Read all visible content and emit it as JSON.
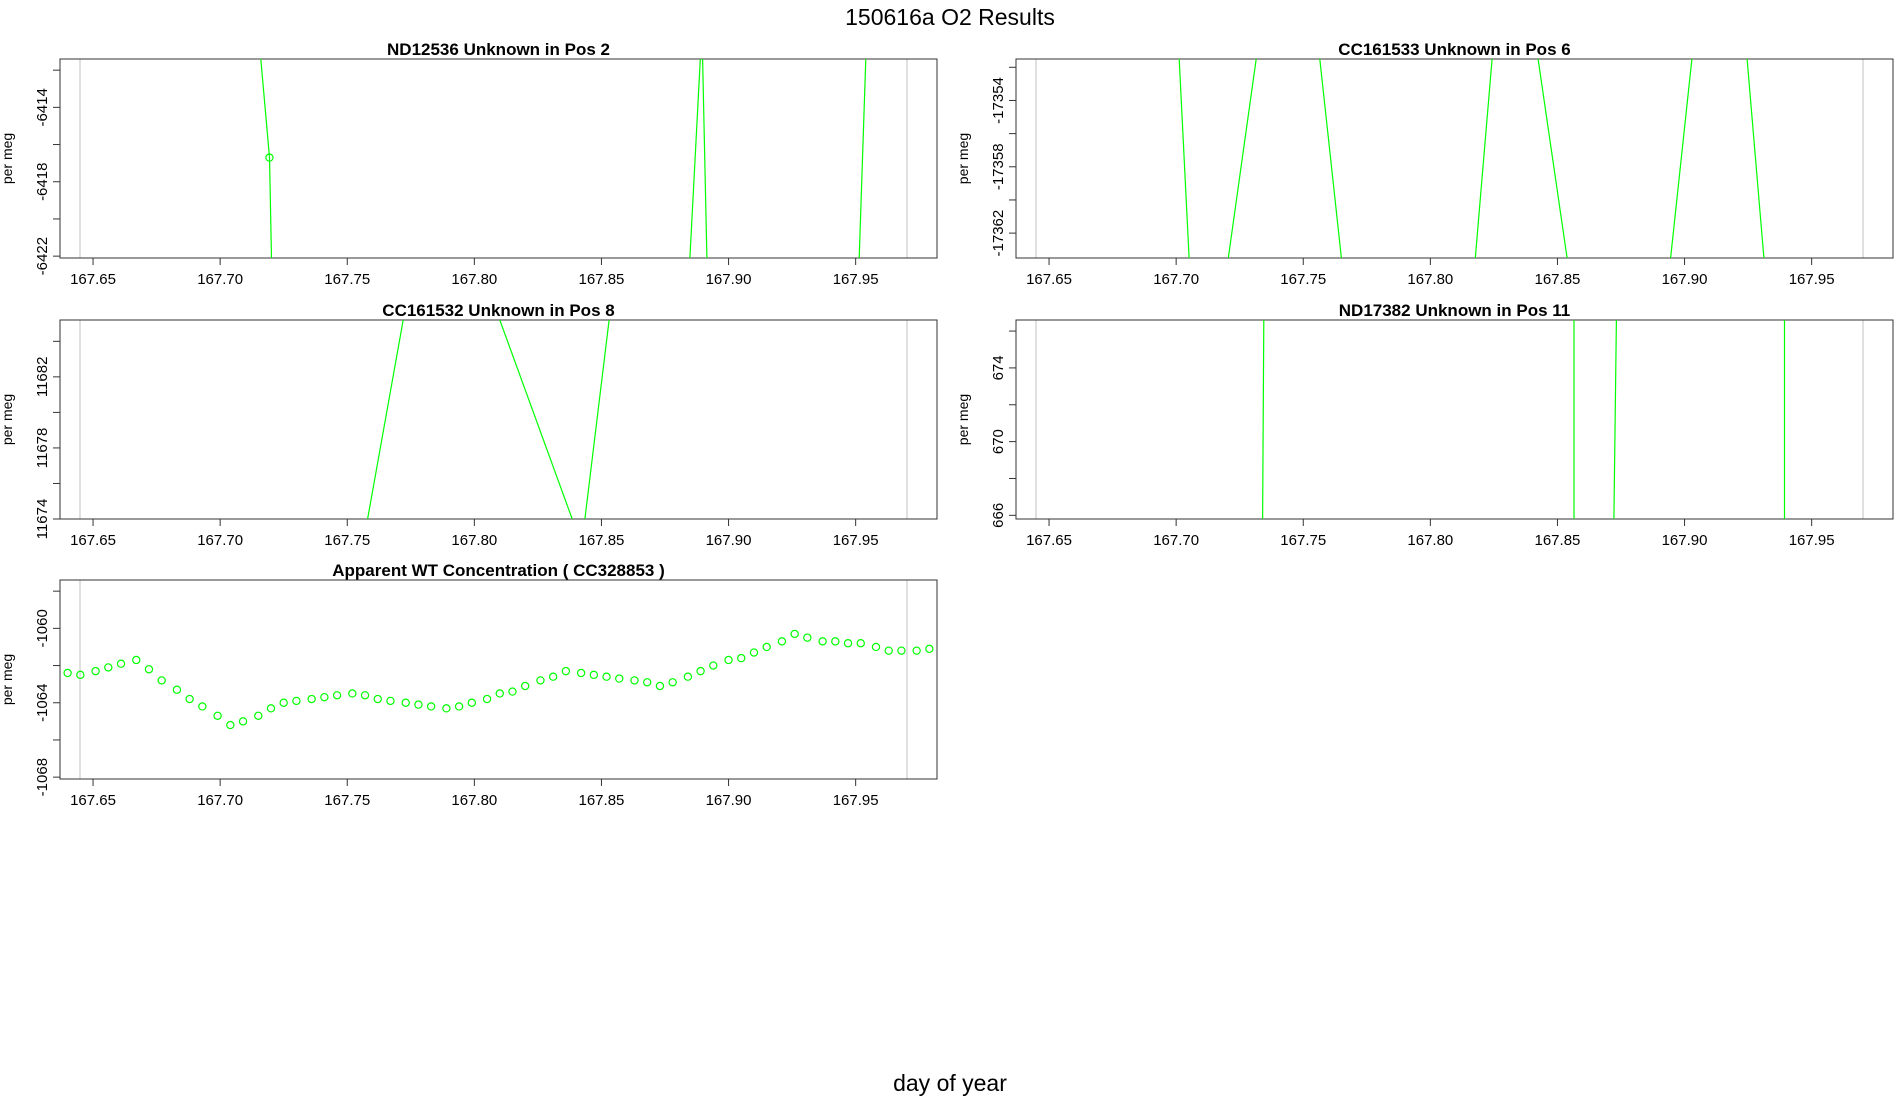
{
  "figure": {
    "title": "150616a  O2 Results",
    "xlabel": "day of year",
    "colors": {
      "data": "#00ff00",
      "frame": "#333333",
      "guide": "#c0c0c0"
    }
  },
  "chart_data": [
    {
      "type": "line",
      "title": "ND12536    Unknown in Pos 2",
      "ylabel": "per meg",
      "xlim": [
        167.637,
        167.982
      ],
      "ylim": [
        -6422.1,
        -6411.4
      ],
      "xticks": [
        167.65,
        167.7,
        167.75,
        167.8,
        167.85,
        167.9,
        167.95
      ],
      "xtick_labels": [
        "167.65",
        "167.70",
        "167.75",
        "167.80",
        "167.85",
        "167.90",
        "167.95"
      ],
      "yticks": [
        -6414,
        -6418,
        -6422
      ],
      "ytick_labels": [
        "-6414",
        "-6418",
        "-6422"
      ],
      "series": [
        {
          "points": [
            [
              167.716,
              -6411.4
            ],
            [
              167.7194,
              -6416.7
            ],
            [
              167.7202,
              -6422.1
            ]
          ]
        },
        {
          "points": [
            [
              167.8848,
              -6422.1
            ],
            [
              167.8889,
              -6411.4
            ]
          ]
        },
        {
          "points": [
            [
              167.8898,
              -6411.4
            ],
            [
              167.8915,
              -6422.1
            ]
          ]
        },
        {
          "points": [
            [
              167.9514,
              -6422.1
            ],
            [
              167.954,
              -6411.4
            ]
          ]
        }
      ],
      "markers": [
        [
          167.7194,
          -6416.7
        ]
      ]
    },
    {
      "type": "line",
      "title": "CC161533    Unknown in Pos 6",
      "ylabel": "per meg",
      "xlim": [
        167.637,
        167.982
      ],
      "ylim": [
        -17363.5,
        -17351.5
      ],
      "xticks": [
        167.65,
        167.7,
        167.75,
        167.8,
        167.85,
        167.9,
        167.95
      ],
      "xtick_labels": [
        "167.65",
        "167.70",
        "167.75",
        "167.80",
        "167.85",
        "167.90",
        "167.95"
      ],
      "yticks": [
        -17354,
        -17358,
        -17362
      ],
      "ytick_labels": [
        "-17354",
        "-17358",
        "-17362"
      ],
      "series": [
        {
          "points": [
            [
              167.7012,
              -17351.5
            ],
            [
              167.7051,
              -17363.5
            ]
          ]
        },
        {
          "points": [
            [
              167.7205,
              -17363.5
            ],
            [
              167.7315,
              -17351.5
            ]
          ]
        },
        {
          "points": [
            [
              167.7565,
              -17351.5
            ],
            [
              167.765,
              -17363.5
            ]
          ]
        },
        {
          "points": [
            [
              167.8177,
              -17363.5
            ],
            [
              167.8243,
              -17351.5
            ]
          ]
        },
        {
          "points": [
            [
              167.8424,
              -17351.5
            ],
            [
              167.8538,
              -17363.5
            ]
          ]
        },
        {
          "points": [
            [
              167.8945,
              -17363.5
            ],
            [
              167.9029,
              -17351.5
            ]
          ]
        },
        {
          "points": [
            [
              167.9246,
              -17351.5
            ],
            [
              167.9312,
              -17363.5
            ]
          ]
        }
      ],
      "markers": []
    },
    {
      "type": "line",
      "title": "CC161532    Unknown in Pos 8",
      "ylabel": "per meg",
      "xlim": [
        167.637,
        167.982
      ],
      "ylim": [
        11674.0,
        11685.2
      ],
      "xticks": [
        167.65,
        167.7,
        167.75,
        167.8,
        167.85,
        167.9,
        167.95
      ],
      "xtick_labels": [
        "167.65",
        "167.70",
        "167.75",
        "167.80",
        "167.85",
        "167.90",
        "167.95"
      ],
      "yticks": [
        11674,
        11678,
        11682
      ],
      "ytick_labels": [
        "11674",
        "11678",
        "11682"
      ],
      "series": [
        {
          "points": [
            [
              167.758,
              11674.0
            ],
            [
              167.772,
              11685.2
            ]
          ]
        },
        {
          "points": [
            [
              167.81,
              11685.2
            ],
            [
              167.8385,
              11674.0
            ]
          ]
        },
        {
          "points": [
            [
              167.8435,
              11674.0
            ],
            [
              167.853,
              11685.2
            ]
          ]
        }
      ],
      "markers": []
    },
    {
      "type": "line",
      "title": "ND17382    Unknown in Pos 11",
      "ylabel": "per meg",
      "xlim": [
        167.637,
        167.982
      ],
      "ylim": [
        665.8,
        676.6
      ],
      "xticks": [
        167.65,
        167.7,
        167.75,
        167.8,
        167.85,
        167.9,
        167.95
      ],
      "xtick_labels": [
        "167.65",
        "167.70",
        "167.75",
        "167.80",
        "167.85",
        "167.90",
        "167.95"
      ],
      "yticks": [
        666,
        670,
        674
      ],
      "ytick_labels": [
        "666",
        "670",
        "674"
      ],
      "series": [
        {
          "points": [
            [
              167.734,
              665.8
            ],
            [
              167.7345,
              676.6
            ]
          ]
        },
        {
          "points": [
            [
              167.8565,
              665.8
            ],
            [
              167.8565,
              676.6
            ]
          ]
        },
        {
          "points": [
            [
              167.8722,
              665.8
            ],
            [
              167.8732,
              676.6
            ]
          ]
        },
        {
          "points": [
            [
              167.9393,
              665.8
            ],
            [
              167.9393,
              676.6
            ]
          ]
        }
      ],
      "markers": []
    },
    {
      "type": "scatter",
      "title": "Apparent WT Concentration ( CC328853 )",
      "ylabel": "per meg",
      "xlim": [
        167.637,
        167.982
      ],
      "ylim": [
        -1068.1,
        -1057.4
      ],
      "xticks": [
        167.65,
        167.7,
        167.75,
        167.8,
        167.85,
        167.9,
        167.95
      ],
      "xtick_labels": [
        "167.65",
        "167.70",
        "167.75",
        "167.80",
        "167.85",
        "167.90",
        "167.95"
      ],
      "yticks": [
        -1060,
        -1064,
        -1068
      ],
      "ytick_labels": [
        "-1060",
        "-1064",
        "-1068"
      ],
      "series": [],
      "markers": [
        [
          167.64,
          -1062.4
        ],
        [
          167.645,
          -1062.5
        ],
        [
          167.651,
          -1062.3
        ],
        [
          167.656,
          -1062.1
        ],
        [
          167.661,
          -1061.9
        ],
        [
          167.667,
          -1061.7
        ],
        [
          167.672,
          -1062.2
        ],
        [
          167.677,
          -1062.8
        ],
        [
          167.683,
          -1063.3
        ],
        [
          167.688,
          -1063.8
        ],
        [
          167.693,
          -1064.2
        ],
        [
          167.699,
          -1064.7
        ],
        [
          167.704,
          -1065.2
        ],
        [
          167.709,
          -1065.0
        ],
        [
          167.715,
          -1064.7
        ],
        [
          167.72,
          -1064.3
        ],
        [
          167.725,
          -1064.0
        ],
        [
          167.73,
          -1063.9
        ],
        [
          167.736,
          -1063.8
        ],
        [
          167.741,
          -1063.7
        ],
        [
          167.746,
          -1063.6
        ],
        [
          167.752,
          -1063.5
        ],
        [
          167.757,
          -1063.6
        ],
        [
          167.762,
          -1063.8
        ],
        [
          167.767,
          -1063.9
        ],
        [
          167.773,
          -1064.0
        ],
        [
          167.778,
          -1064.1
        ],
        [
          167.783,
          -1064.2
        ],
        [
          167.789,
          -1064.3
        ],
        [
          167.794,
          -1064.2
        ],
        [
          167.799,
          -1064.0
        ],
        [
          167.805,
          -1063.8
        ],
        [
          167.81,
          -1063.5
        ],
        [
          167.815,
          -1063.4
        ],
        [
          167.82,
          -1063.1
        ],
        [
          167.826,
          -1062.8
        ],
        [
          167.831,
          -1062.6
        ],
        [
          167.836,
          -1062.3
        ],
        [
          167.842,
          -1062.4
        ],
        [
          167.847,
          -1062.5
        ],
        [
          167.852,
          -1062.6
        ],
        [
          167.857,
          -1062.7
        ],
        [
          167.863,
          -1062.8
        ],
        [
          167.868,
          -1062.9
        ],
        [
          167.873,
          -1063.1
        ],
        [
          167.878,
          -1062.9
        ],
        [
          167.884,
          -1062.6
        ],
        [
          167.889,
          -1062.3
        ],
        [
          167.894,
          -1062.0
        ],
        [
          167.9,
          -1061.7
        ],
        [
          167.905,
          -1061.6
        ],
        [
          167.91,
          -1061.3
        ],
        [
          167.915,
          -1061.0
        ],
        [
          167.921,
          -1060.7
        ],
        [
          167.926,
          -1060.3
        ],
        [
          167.931,
          -1060.5
        ],
        [
          167.937,
          -1060.7
        ],
        [
          167.942,
          -1060.7
        ],
        [
          167.947,
          -1060.8
        ],
        [
          167.952,
          -1060.8
        ],
        [
          167.958,
          -1061.0
        ],
        [
          167.963,
          -1061.2
        ],
        [
          167.968,
          -1061.2
        ],
        [
          167.974,
          -1061.2
        ],
        [
          167.979,
          -1061.1
        ]
      ]
    }
  ]
}
